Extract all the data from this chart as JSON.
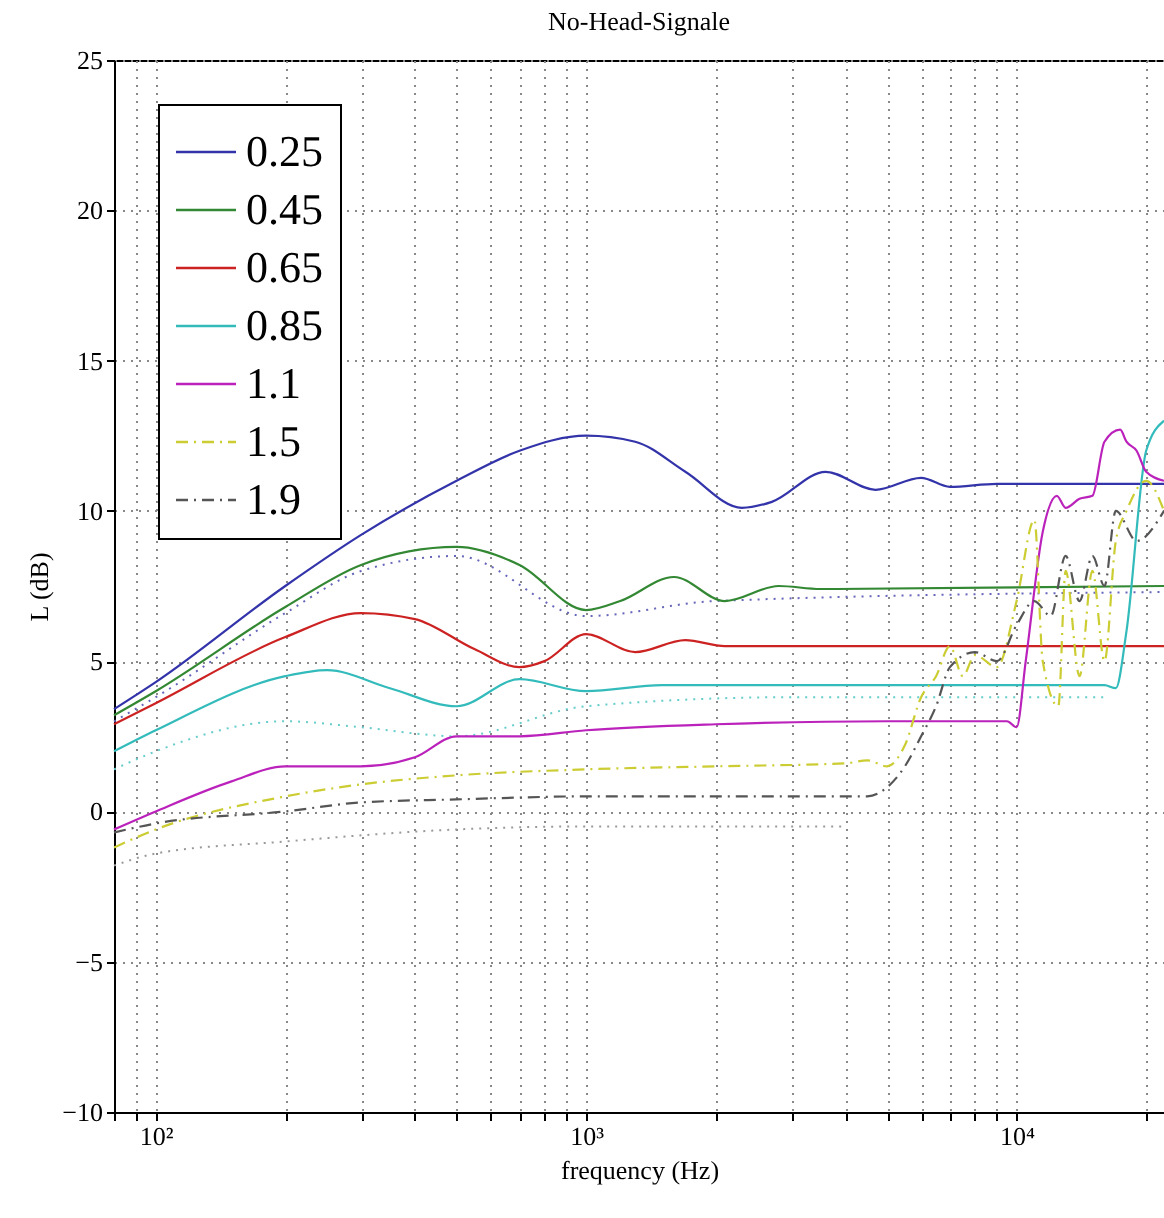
{
  "chart_data": {
    "type": "line",
    "title": "No-Head-Signale",
    "xlabel": "frequency (Hz)",
    "ylabel": "L (dB)",
    "log": "x",
    "grid": true,
    "legend": "top left",
    "marker": "none",
    "xlim": [
      80,
      22000
    ],
    "ylim": [
      -10,
      25
    ],
    "yticks": [
      -10,
      -5,
      0,
      5,
      10,
      15,
      20,
      25
    ],
    "xticks": [
      {
        "value": 80,
        "label": null
      },
      {
        "value": 90,
        "label": null
      },
      {
        "value": 100,
        "label": "10²"
      },
      {
        "value": 200,
        "label": null
      },
      {
        "value": 300,
        "label": null
      },
      {
        "value": 400,
        "label": null
      },
      {
        "value": 500,
        "label": null
      },
      {
        "value": 600,
        "label": null
      },
      {
        "value": 700,
        "label": null
      },
      {
        "value": 800,
        "label": null
      },
      {
        "value": 900,
        "label": null
      },
      {
        "value": 1000,
        "label": "10³"
      },
      {
        "value": 2000,
        "label": null
      },
      {
        "value": 3000,
        "label": null
      },
      {
        "value": 4000,
        "label": null
      },
      {
        "value": 5000,
        "label": null
      },
      {
        "value": 6000,
        "label": null
      },
      {
        "value": 7000,
        "label": null
      },
      {
        "value": 8000,
        "label": null
      },
      {
        "value": 9000,
        "label": null
      },
      {
        "value": 10000,
        "label": "10⁴"
      },
      {
        "value": 20000,
        "label": null
      }
    ],
    "series": [
      {
        "name": "0.25",
        "color": "#3333aa",
        "line_style": "solid",
        "x": [
          80,
          100,
          200,
          300,
          500,
          700,
          1000,
          1300,
          1700,
          2300,
          2700,
          3600,
          4700,
          6000,
          7000,
          9000,
          22000
        ],
        "values": [
          3.4,
          4.3,
          7.5,
          9.2,
          11.0,
          12.0,
          12.5,
          12.3,
          11.3,
          10.1,
          10.3,
          11.3,
          10.7,
          11.1,
          10.8,
          10.9,
          10.9
        ]
      },
      {
        "name": "0.45",
        "color": "#338833",
        "line_style": "solid",
        "x": [
          80,
          100,
          200,
          300,
          500,
          700,
          1000,
          1200,
          1600,
          2100,
          2800,
          3500,
          22000
        ],
        "values": [
          3.2,
          4.0,
          6.8,
          8.2,
          8.8,
          8.2,
          6.7,
          7.0,
          7.8,
          7.0,
          7.5,
          7.4,
          7.5
        ]
      },
      {
        "name": "0.65",
        "color": "#cc2222",
        "line_style": "solid",
        "x": [
          80,
          100,
          200,
          300,
          400,
          550,
          700,
          800,
          1000,
          1300,
          1700,
          2100,
          22000
        ],
        "values": [
          2.9,
          3.6,
          5.8,
          6.6,
          6.4,
          5.4,
          4.8,
          5.0,
          5.9,
          5.3,
          5.7,
          5.5,
          5.5
        ]
      },
      {
        "name": "0.85",
        "color": "#33bbbb",
        "line_style": "solid",
        "x": [
          80,
          100,
          200,
          250,
          350,
          500,
          700,
          1000,
          1500,
          10000,
          16000,
          17000,
          18000,
          20000,
          22000
        ],
        "values": [
          2.0,
          2.7,
          4.5,
          4.7,
          4.1,
          3.5,
          4.4,
          4.0,
          4.2,
          4.2,
          4.2,
          4.1,
          6.0,
          12.0,
          13.0
        ]
      },
      {
        "name": "1.1",
        "color": "#bb22bb",
        "line_style": "solid",
        "x": [
          80,
          100,
          150,
          200,
          300,
          400,
          500,
          700,
          1000,
          2000,
          5000,
          9500,
          10000,
          10500,
          11500,
          12400,
          13000,
          14000,
          15000,
          16000,
          17400,
          18000,
          19000,
          20000,
          22000
        ],
        "values": [
          -0.6,
          0.0,
          1.0,
          1.5,
          1.5,
          1.8,
          2.5,
          2.5,
          2.7,
          2.9,
          3.0,
          3.0,
          2.8,
          5.0,
          9.3,
          10.5,
          10.1,
          10.4,
          10.5,
          12.3,
          12.7,
          12.3,
          12.0,
          11.3,
          11.0
        ]
      },
      {
        "name": "1.5",
        "color": "#cccc33",
        "line_style": "dashdot",
        "x": [
          80,
          100,
          200,
          300,
          500,
          1000,
          2000,
          4000,
          4500,
          5000,
          5500,
          6000,
          6500,
          7000,
          7500,
          8000,
          9000,
          10000,
          11000,
          11500,
          12500,
          13000,
          14000,
          15000,
          16000,
          17000,
          18000,
          20000,
          22000
        ],
        "values": [
          -1.2,
          -0.6,
          0.5,
          0.9,
          1.2,
          1.4,
          1.5,
          1.6,
          1.7,
          1.5,
          2.2,
          3.8,
          4.5,
          5.5,
          4.5,
          5.2,
          4.8,
          7.0,
          9.7,
          5.0,
          3.5,
          8.0,
          4.5,
          8.0,
          5.0,
          9.0,
          10.0,
          11.0,
          10.0
        ]
      },
      {
        "name": "1.9",
        "color": "#555555",
        "line_style": "dashdot",
        "x": [
          80,
          100,
          200,
          300,
          500,
          1000,
          4000,
          4500,
          5000,
          5500,
          6000,
          6500,
          7000,
          8000,
          9000,
          10000,
          11000,
          12000,
          13000,
          14000,
          15000,
          16000,
          17000,
          19000,
          22000
        ],
        "values": [
          -0.7,
          -0.4,
          0.0,
          0.3,
          0.4,
          0.5,
          0.5,
          0.5,
          0.8,
          1.5,
          2.5,
          3.5,
          4.8,
          5.3,
          5.0,
          6.2,
          7.0,
          6.5,
          8.5,
          7.0,
          8.5,
          7.5,
          10.0,
          9.0,
          10.0
        ]
      },
      {
        "color": "#6666bb",
        "line_style": "dotted",
        "x": [
          80,
          100,
          200,
          300,
          500,
          1000,
          2000,
          22000
        ],
        "values": [
          3.0,
          3.8,
          6.6,
          8.0,
          8.5,
          6.5,
          7.0,
          7.3
        ]
      },
      {
        "color": "#66cccc",
        "line_style": "dotted",
        "x": [
          80,
          100,
          200,
          300,
          500,
          1000,
          3000,
          16000
        ],
        "values": [
          1.4,
          2.0,
          3.0,
          2.8,
          2.5,
          3.5,
          3.8,
          3.8
        ]
      },
      {
        "color": "#999999",
        "line_style": "dotted",
        "x": [
          80,
          100,
          200,
          500,
          1000,
          4000
        ],
        "values": [
          -1.8,
          -1.4,
          -1.0,
          -0.6,
          -0.5,
          -0.5
        ]
      }
    ]
  }
}
